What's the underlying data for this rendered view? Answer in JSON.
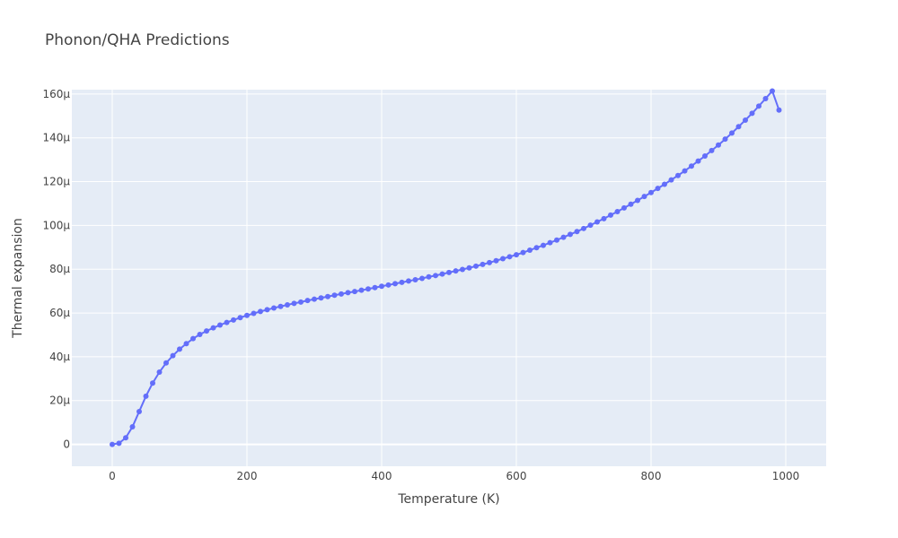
{
  "chart_data": {
    "type": "line",
    "title": "Phonon/QHA Predictions",
    "xlabel": "Temperature (K)",
    "ylabel": "Thermal expansion",
    "xlim": [
      -60,
      1060
    ],
    "ylim": [
      -1e-05,
      0.000162
    ],
    "x_ticks": [
      0,
      200,
      400,
      600,
      800,
      1000
    ],
    "x_tick_labels": [
      "0",
      "200",
      "400",
      "600",
      "800",
      "1000"
    ],
    "y_ticks": [
      0,
      2e-05,
      4e-05,
      6e-05,
      8e-05,
      0.0001,
      0.00012,
      0.00014,
      0.00016
    ],
    "y_tick_labels": [
      "0",
      "20μ",
      "40μ",
      "60μ",
      "80μ",
      "100μ",
      "120μ",
      "140μ",
      "160μ"
    ],
    "grid": true,
    "colors": {
      "series": "#636efa",
      "plot_bg": "#e5ecf6",
      "grid": "#ffffff",
      "text": "#444444"
    },
    "series": [
      {
        "mode": "lines+markers",
        "x": [
          0,
          10,
          20,
          30,
          40,
          50,
          60,
          70,
          80,
          90,
          100,
          110,
          120,
          130,
          140,
          150,
          160,
          170,
          180,
          190,
          200,
          210,
          220,
          230,
          240,
          250,
          260,
          270,
          280,
          290,
          300,
          310,
          320,
          330,
          340,
          350,
          360,
          370,
          380,
          390,
          400,
          410,
          420,
          430,
          440,
          450,
          460,
          470,
          480,
          490,
          500,
          510,
          520,
          530,
          540,
          550,
          560,
          570,
          580,
          590,
          600,
          610,
          620,
          630,
          640,
          650,
          660,
          670,
          680,
          690,
          700,
          710,
          720,
          730,
          740,
          750,
          760,
          770,
          780,
          790,
          800,
          810,
          820,
          830,
          840,
          850,
          860,
          870,
          880,
          890,
          900,
          910,
          920,
          930,
          940,
          950,
          960,
          970,
          980,
          990
        ],
        "y": [
          0,
          5e-07,
          3e-06,
          8e-06,
          1.5e-05,
          2.2e-05,
          2.8e-05,
          3.3e-05,
          3.72e-05,
          4.05e-05,
          4.35e-05,
          4.6e-05,
          4.83e-05,
          5.02e-05,
          5.18e-05,
          5.32e-05,
          5.45e-05,
          5.57e-05,
          5.68e-05,
          5.79e-05,
          5.89e-05,
          5.98e-05,
          6.07e-05,
          6.15e-05,
          6.23e-05,
          6.3e-05,
          6.37e-05,
          6.44e-05,
          6.5e-05,
          6.57e-05,
          6.63e-05,
          6.69e-05,
          6.75e-05,
          6.81e-05,
          6.87e-05,
          6.93e-05,
          6.98e-05,
          7.04e-05,
          7.1e-05,
          7.16e-05,
          7.22e-05,
          7.28e-05,
          7.34e-05,
          7.4e-05,
          7.46e-05,
          7.52e-05,
          7.58e-05,
          7.65e-05,
          7.71e-05,
          7.78e-05,
          7.85e-05,
          7.92e-05,
          7.99e-05,
          8.06e-05,
          8.14e-05,
          8.22e-05,
          8.3e-05,
          8.39e-05,
          8.48e-05,
          8.57e-05,
          8.66e-05,
          8.76e-05,
          8.87e-05,
          8.98e-05,
          9.09e-05,
          9.21e-05,
          9.33e-05,
          9.46e-05,
          9.59e-05,
          9.72e-05,
          9.86e-05,
          0.0001001,
          0.0001016,
          0.0001031,
          0.0001047,
          0.0001063,
          0.000108,
          0.0001097,
          0.0001114,
          0.0001132,
          0.000115,
          0.0001169,
          0.0001188,
          0.0001208,
          0.0001228,
          0.0001249,
          0.0001271,
          0.0001294,
          0.0001317,
          0.0001342,
          0.0001367,
          0.0001394,
          0.0001422,
          0.0001451,
          0.0001481,
          0.0001512,
          0.0001545,
          0.0001579,
          0.0001614,
          0.0001527
        ]
      }
    ]
  }
}
